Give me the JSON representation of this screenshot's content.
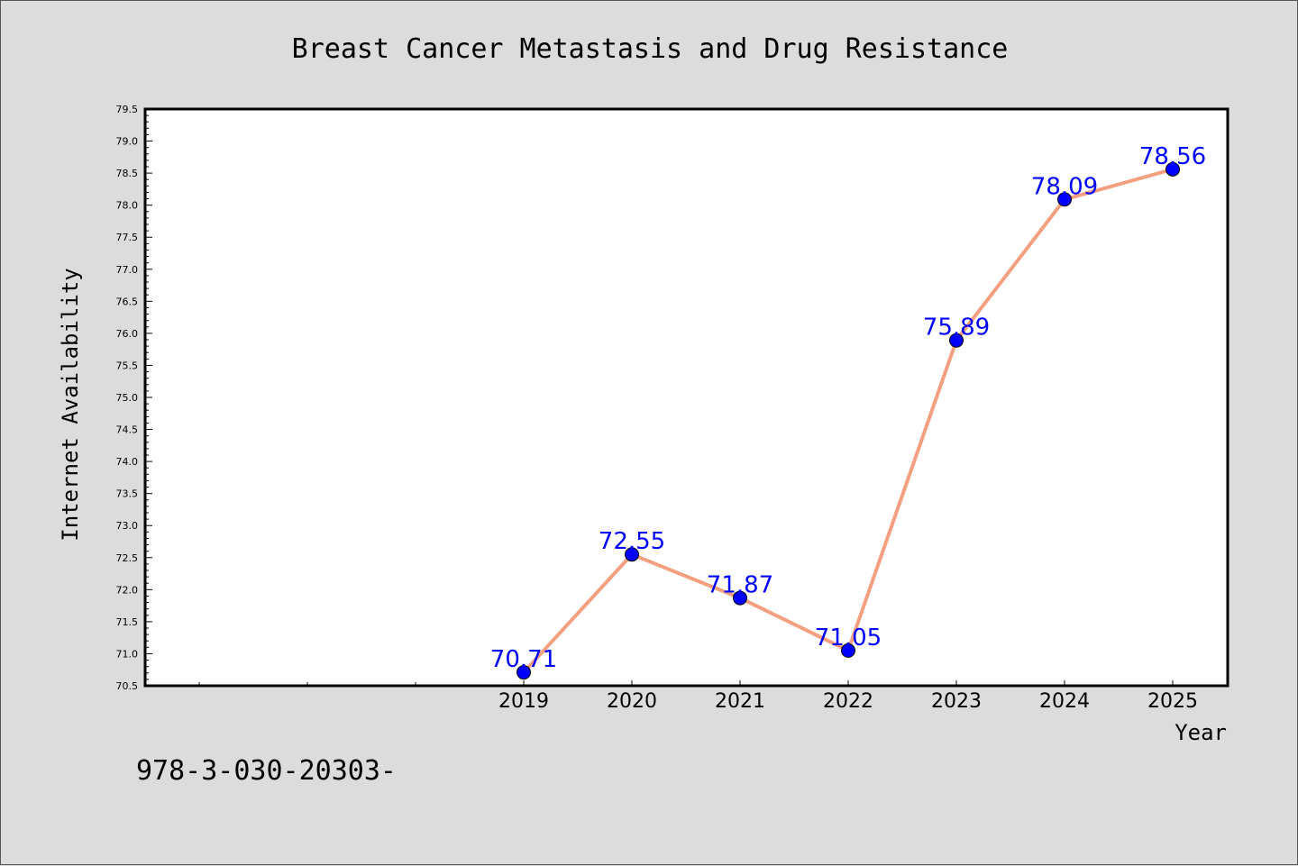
{
  "chart_data": {
    "type": "line",
    "title": "Breast Cancer Metastasis and Drug Resistance",
    "xlabel": "Year",
    "ylabel": "Internet Availability",
    "categories": [
      "2019",
      "2020",
      "2021",
      "2022",
      "2023",
      "2024",
      "2025"
    ],
    "values": [
      70.71,
      72.55,
      71.87,
      71.05,
      75.89,
      78.09,
      78.56
    ],
    "data_labels": [
      "70.71",
      "72.55",
      "71.87",
      "71.05",
      "75.89",
      "78.09",
      "78.56"
    ],
    "ylim": [
      70.5,
      79.5
    ],
    "yticks": [
      "70.5",
      "71.0",
      "71.5",
      "72.0",
      "72.5",
      "73.0",
      "73.5",
      "74.0",
      "74.5",
      "75.0",
      "75.5",
      "76.0",
      "76.5",
      "77.0",
      "77.5",
      "78.0",
      "78.5",
      "79.0",
      "79.5"
    ],
    "grid": false,
    "legend": "none",
    "colors": {
      "line": "#f4a080",
      "marker": "#0000ff",
      "label": "#0000ff",
      "plot_background": "#ffffff",
      "figure_background": "#dcdcdc"
    }
  },
  "annotation": "978-3-030-20303-"
}
